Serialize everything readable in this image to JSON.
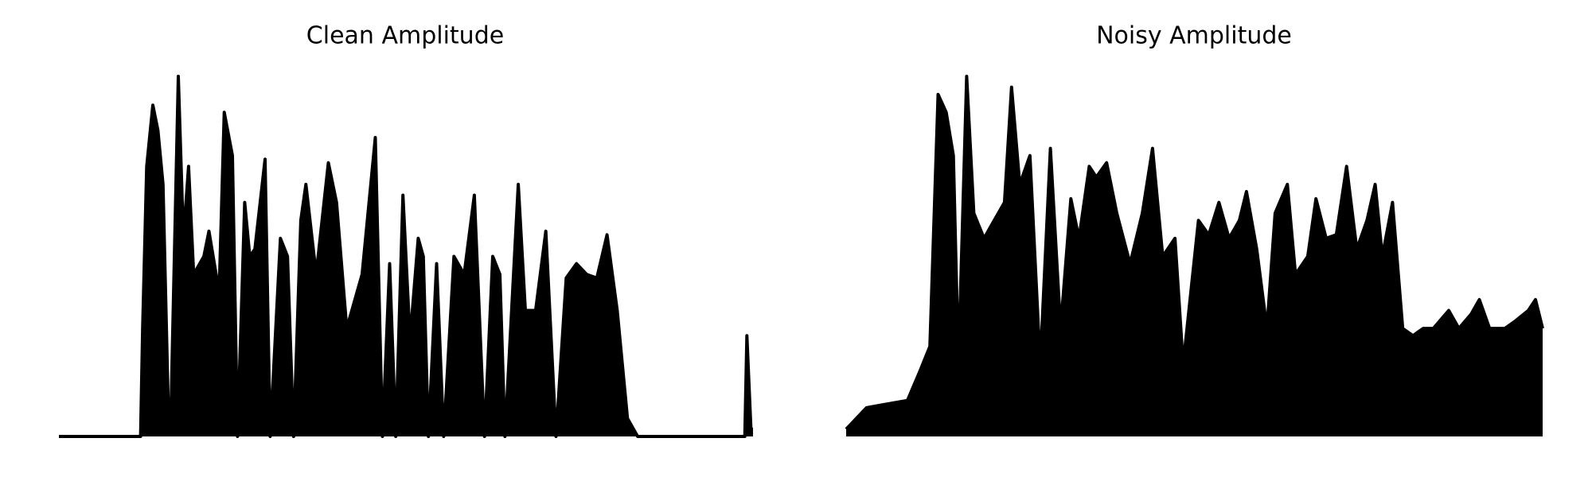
{
  "chart_data": [
    {
      "type": "line",
      "title": "Clean Amplitude",
      "color": "#000000",
      "xlim": [
        0,
        680
      ],
      "ylim": [
        0,
        1
      ],
      "x": [
        0,
        80,
        82,
        86,
        92,
        97,
        102,
        107,
        110,
        117,
        122,
        127,
        132,
        142,
        147,
        157,
        162,
        170,
        175,
        182,
        187,
        192,
        202,
        207,
        217,
        224,
        230,
        237,
        242,
        252,
        264,
        272,
        282,
        297,
        310,
        317,
        324,
        330,
        337,
        344,
        352,
        357,
        362,
        370,
        377,
        387,
        397,
        407,
        417,
        425,
        432,
        437,
        450,
        457,
        467,
        477,
        487,
        497,
        507,
        517,
        527,
        537,
        547,
        557,
        567,
        672,
        674,
        678,
        680
      ],
      "values": [
        0,
        0,
        0.3,
        0.75,
        0.92,
        0.85,
        0.7,
        0.1,
        0.1,
        1.0,
        0.55,
        0.75,
        0.45,
        0.5,
        0.57,
        0.4,
        0.9,
        0.78,
        0,
        0.65,
        0.5,
        0.52,
        0.77,
        0,
        0.55,
        0.5,
        0,
        0.6,
        0.7,
        0.45,
        0.76,
        0.65,
        0.3,
        0.45,
        0.83,
        0,
        0.48,
        0,
        0.67,
        0.27,
        0.55,
        0.5,
        0,
        0.48,
        0,
        0.5,
        0.45,
        0.67,
        0,
        0.5,
        0.45,
        0,
        0.7,
        0.35,
        0.35,
        0.57,
        0,
        0.44,
        0.48,
        0.45,
        0.44,
        0.56,
        0.35,
        0.05,
        0,
        0,
        0.28,
        0.02,
        0.02
      ]
    },
    {
      "type": "line",
      "title": "Noisy Amplitude",
      "color": "#000000",
      "xlim": [
        0,
        682
      ],
      "ylim": [
        0,
        1
      ],
      "x": [
        0,
        20,
        40,
        60,
        72,
        82,
        90,
        98,
        105,
        110,
        118,
        125,
        135,
        145,
        155,
        162,
        170,
        180,
        190,
        200,
        210,
        220,
        228,
        238,
        245,
        255,
        265,
        278,
        290,
        300,
        310,
        322,
        330,
        345,
        355,
        365,
        375,
        385,
        392,
        402,
        412,
        420,
        432,
        440,
        452,
        460,
        470,
        480,
        490,
        500,
        510,
        518,
        525,
        535,
        545,
        555,
        565,
        575,
        590,
        600,
        612,
        620,
        630,
        645,
        655,
        668,
        675,
        682
      ],
      "values": [
        0.02,
        0.08,
        0.09,
        0.1,
        0.18,
        0.25,
        0.95,
        0.9,
        0.78,
        0.2,
        1.0,
        0.62,
        0.55,
        0.6,
        0.65,
        0.97,
        0.7,
        0.78,
        0.2,
        0.8,
        0.3,
        0.66,
        0.55,
        0.75,
        0.72,
        0.76,
        0.62,
        0.48,
        0.62,
        0.8,
        0.5,
        0.55,
        0.2,
        0.6,
        0.56,
        0.65,
        0.55,
        0.6,
        0.68,
        0.52,
        0.3,
        0.62,
        0.7,
        0.45,
        0.5,
        0.66,
        0.55,
        0.56,
        0.75,
        0.52,
        0.6,
        0.7,
        0.5,
        0.65,
        0.3,
        0.28,
        0.3,
        0.3,
        0.35,
        0.3,
        0.34,
        0.38,
        0.3,
        0.3,
        0.32,
        0.35,
        0.38,
        0.3
      ]
    }
  ]
}
